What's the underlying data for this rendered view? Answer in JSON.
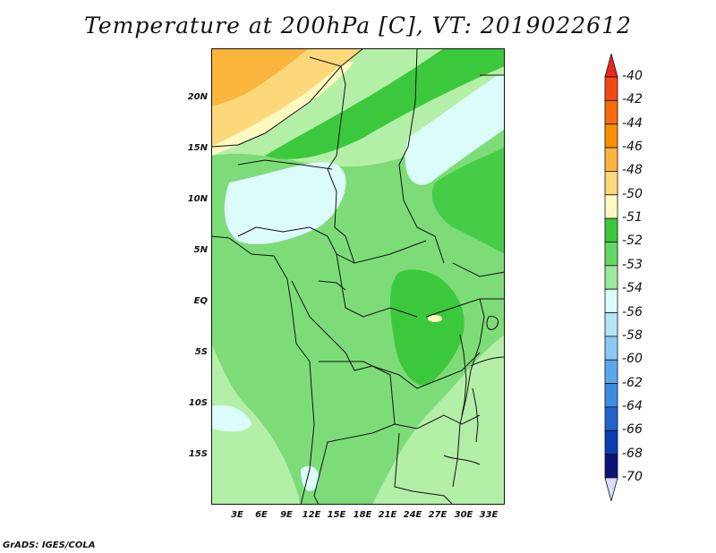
{
  "title": "Temperature at 200hPa [C], VT: 2019022612",
  "credit": "GrADS: IGES/COLA",
  "map": {
    "lat_labels": [
      "20N",
      "15N",
      "10N",
      "5N",
      "EQ",
      "5S",
      "10S",
      "15S"
    ],
    "lon_labels": [
      "3E",
      "6E",
      "9E",
      "12E",
      "15E",
      "18E",
      "21E",
      "24E",
      "27E",
      "30E",
      "33E"
    ]
  },
  "colorbar": {
    "labels": [
      "-40",
      "-42",
      "-44",
      "-46",
      "-48",
      "-50",
      "-51",
      "-52",
      "-53",
      "-54",
      "-56",
      "-58",
      "-60",
      "-62",
      "-64",
      "-66",
      "-68",
      "-70"
    ],
    "colors": [
      "#e8281e",
      "#f24a14",
      "#f76b0a",
      "#fa9000",
      "#fbb43c",
      "#fcd87a",
      "#fef9c0",
      "#3cc83c",
      "#64d864",
      "#9ee89e",
      "#dcfcfc",
      "#b4e6fa",
      "#8cc8f5",
      "#5aa8ec",
      "#3c8ce0",
      "#2064cc",
      "#0c3cb4",
      "#0a1478",
      "#dcdcfa"
    ]
  }
}
